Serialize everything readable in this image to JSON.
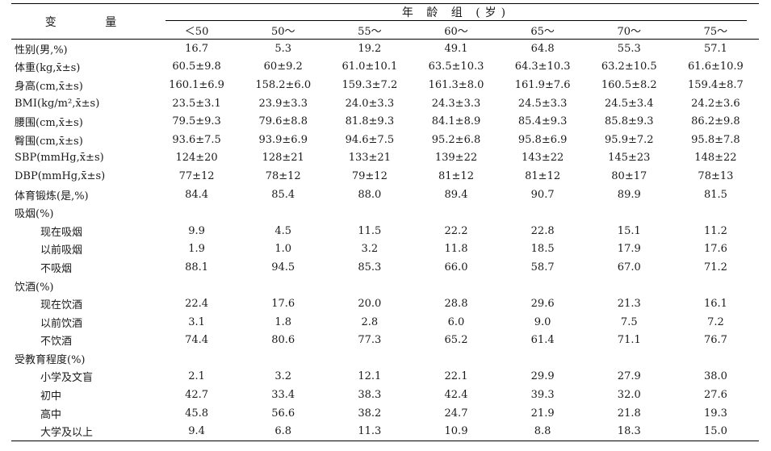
{
  "header": {
    "variable": "变 量",
    "age_group": "年 龄 组 (岁)",
    "groups": [
      "＜50",
      "50～",
      "55～",
      "60～",
      "65～",
      "70～",
      "75～"
    ]
  },
  "rows": [
    {
      "label": "性别(男,%)",
      "indent": false,
      "values": [
        "16.7",
        "5.3",
        "19.2",
        "49.1",
        "64.8",
        "55.3",
        "57.1"
      ]
    },
    {
      "label": "体重(kg,x̄±s)",
      "indent": false,
      "values": [
        "60.5±9.8",
        "60±9.2",
        "61.0±10.1",
        "63.5±10.3",
        "64.3±10.3",
        "63.2±10.5",
        "61.6±10.9"
      ]
    },
    {
      "label": "身高(cm,x̄±s)",
      "indent": false,
      "values": [
        "160.1±6.9",
        "158.2±6.0",
        "159.3±7.2",
        "161.3±8.0",
        "161.9±7.6",
        "160.5±8.2",
        "159.4±8.7"
      ]
    },
    {
      "label": "BMI(kg/m²,x̄±s)",
      "indent": false,
      "values": [
        "23.5±3.1",
        "23.9±3.3",
        "24.0±3.3",
        "24.3±3.3",
        "24.5±3.3",
        "24.5±3.4",
        "24.2±3.6"
      ]
    },
    {
      "label": "腰围(cm,x̄±s)",
      "indent": false,
      "values": [
        "79.5±9.3",
        "79.6±8.8",
        "81.8±9.3",
        "84.1±8.9",
        "85.4±9.3",
        "85.8±9.3",
        "86.2±9.8"
      ]
    },
    {
      "label": "臀围(cm,x̄±s)",
      "indent": false,
      "values": [
        "93.6±7.5",
        "93.9±6.9",
        "94.6±7.5",
        "95.2±6.8",
        "95.8±6.9",
        "95.9±7.2",
        "95.8±7.8"
      ]
    },
    {
      "label": "SBP(mmHg,x̄±s)",
      "indent": false,
      "values": [
        "124±20",
        "128±21",
        "133±21",
        "139±22",
        "143±22",
        "145±23",
        "148±22"
      ]
    },
    {
      "label": "DBP(mmHg,x̄±s)",
      "indent": false,
      "values": [
        "77±12",
        "78±12",
        "79±12",
        "81±12",
        "81±12",
        "80±17",
        "78±13"
      ]
    },
    {
      "label": "体育锻炼(是,%)",
      "indent": false,
      "values": [
        "84.4",
        "85.4",
        "88.0",
        "89.4",
        "90.7",
        "89.9",
        "81.5"
      ]
    },
    {
      "label": "吸烟(%)",
      "indent": false,
      "values": [
        "",
        "",
        "",
        "",
        "",
        "",
        ""
      ]
    },
    {
      "label": "现在吸烟",
      "indent": true,
      "values": [
        "9.9",
        "4.5",
        "11.5",
        "22.2",
        "22.8",
        "15.1",
        "11.2"
      ]
    },
    {
      "label": "以前吸烟",
      "indent": true,
      "values": [
        "1.9",
        "1.0",
        "3.2",
        "11.8",
        "18.5",
        "17.9",
        "17.6"
      ]
    },
    {
      "label": "不吸烟",
      "indent": true,
      "values": [
        "88.1",
        "94.5",
        "85.3",
        "66.0",
        "58.7",
        "67.0",
        "71.2"
      ]
    },
    {
      "label": "饮酒(%)",
      "indent": false,
      "values": [
        "",
        "",
        "",
        "",
        "",
        "",
        ""
      ]
    },
    {
      "label": "现在饮酒",
      "indent": true,
      "values": [
        "22.4",
        "17.6",
        "20.0",
        "28.8",
        "29.6",
        "21.3",
        "16.1"
      ]
    },
    {
      "label": "以前饮酒",
      "indent": true,
      "values": [
        "3.1",
        "1.8",
        "2.8",
        "6.0",
        "9.0",
        "7.5",
        "7.2"
      ]
    },
    {
      "label": "不饮酒",
      "indent": true,
      "values": [
        "74.4",
        "80.6",
        "77.3",
        "65.2",
        "61.4",
        "71.1",
        "76.7"
      ]
    },
    {
      "label": "受教育程度(%)",
      "indent": false,
      "values": [
        "",
        "",
        "",
        "",
        "",
        "",
        ""
      ]
    },
    {
      "label": "小学及文盲",
      "indent": true,
      "values": [
        "2.1",
        "3.2",
        "12.1",
        "22.1",
        "29.9",
        "27.9",
        "38.0"
      ]
    },
    {
      "label": "初中",
      "indent": true,
      "values": [
        "42.7",
        "33.4",
        "38.3",
        "42.4",
        "39.3",
        "32.0",
        "27.6"
      ]
    },
    {
      "label": "高中",
      "indent": true,
      "values": [
        "45.8",
        "56.6",
        "38.2",
        "24.7",
        "21.9",
        "21.8",
        "19.3"
      ]
    },
    {
      "label": "大学及以上",
      "indent": true,
      "values": [
        "9.4",
        "6.8",
        "11.3",
        "10.9",
        "8.8",
        "18.3",
        "15.0"
      ]
    }
  ]
}
